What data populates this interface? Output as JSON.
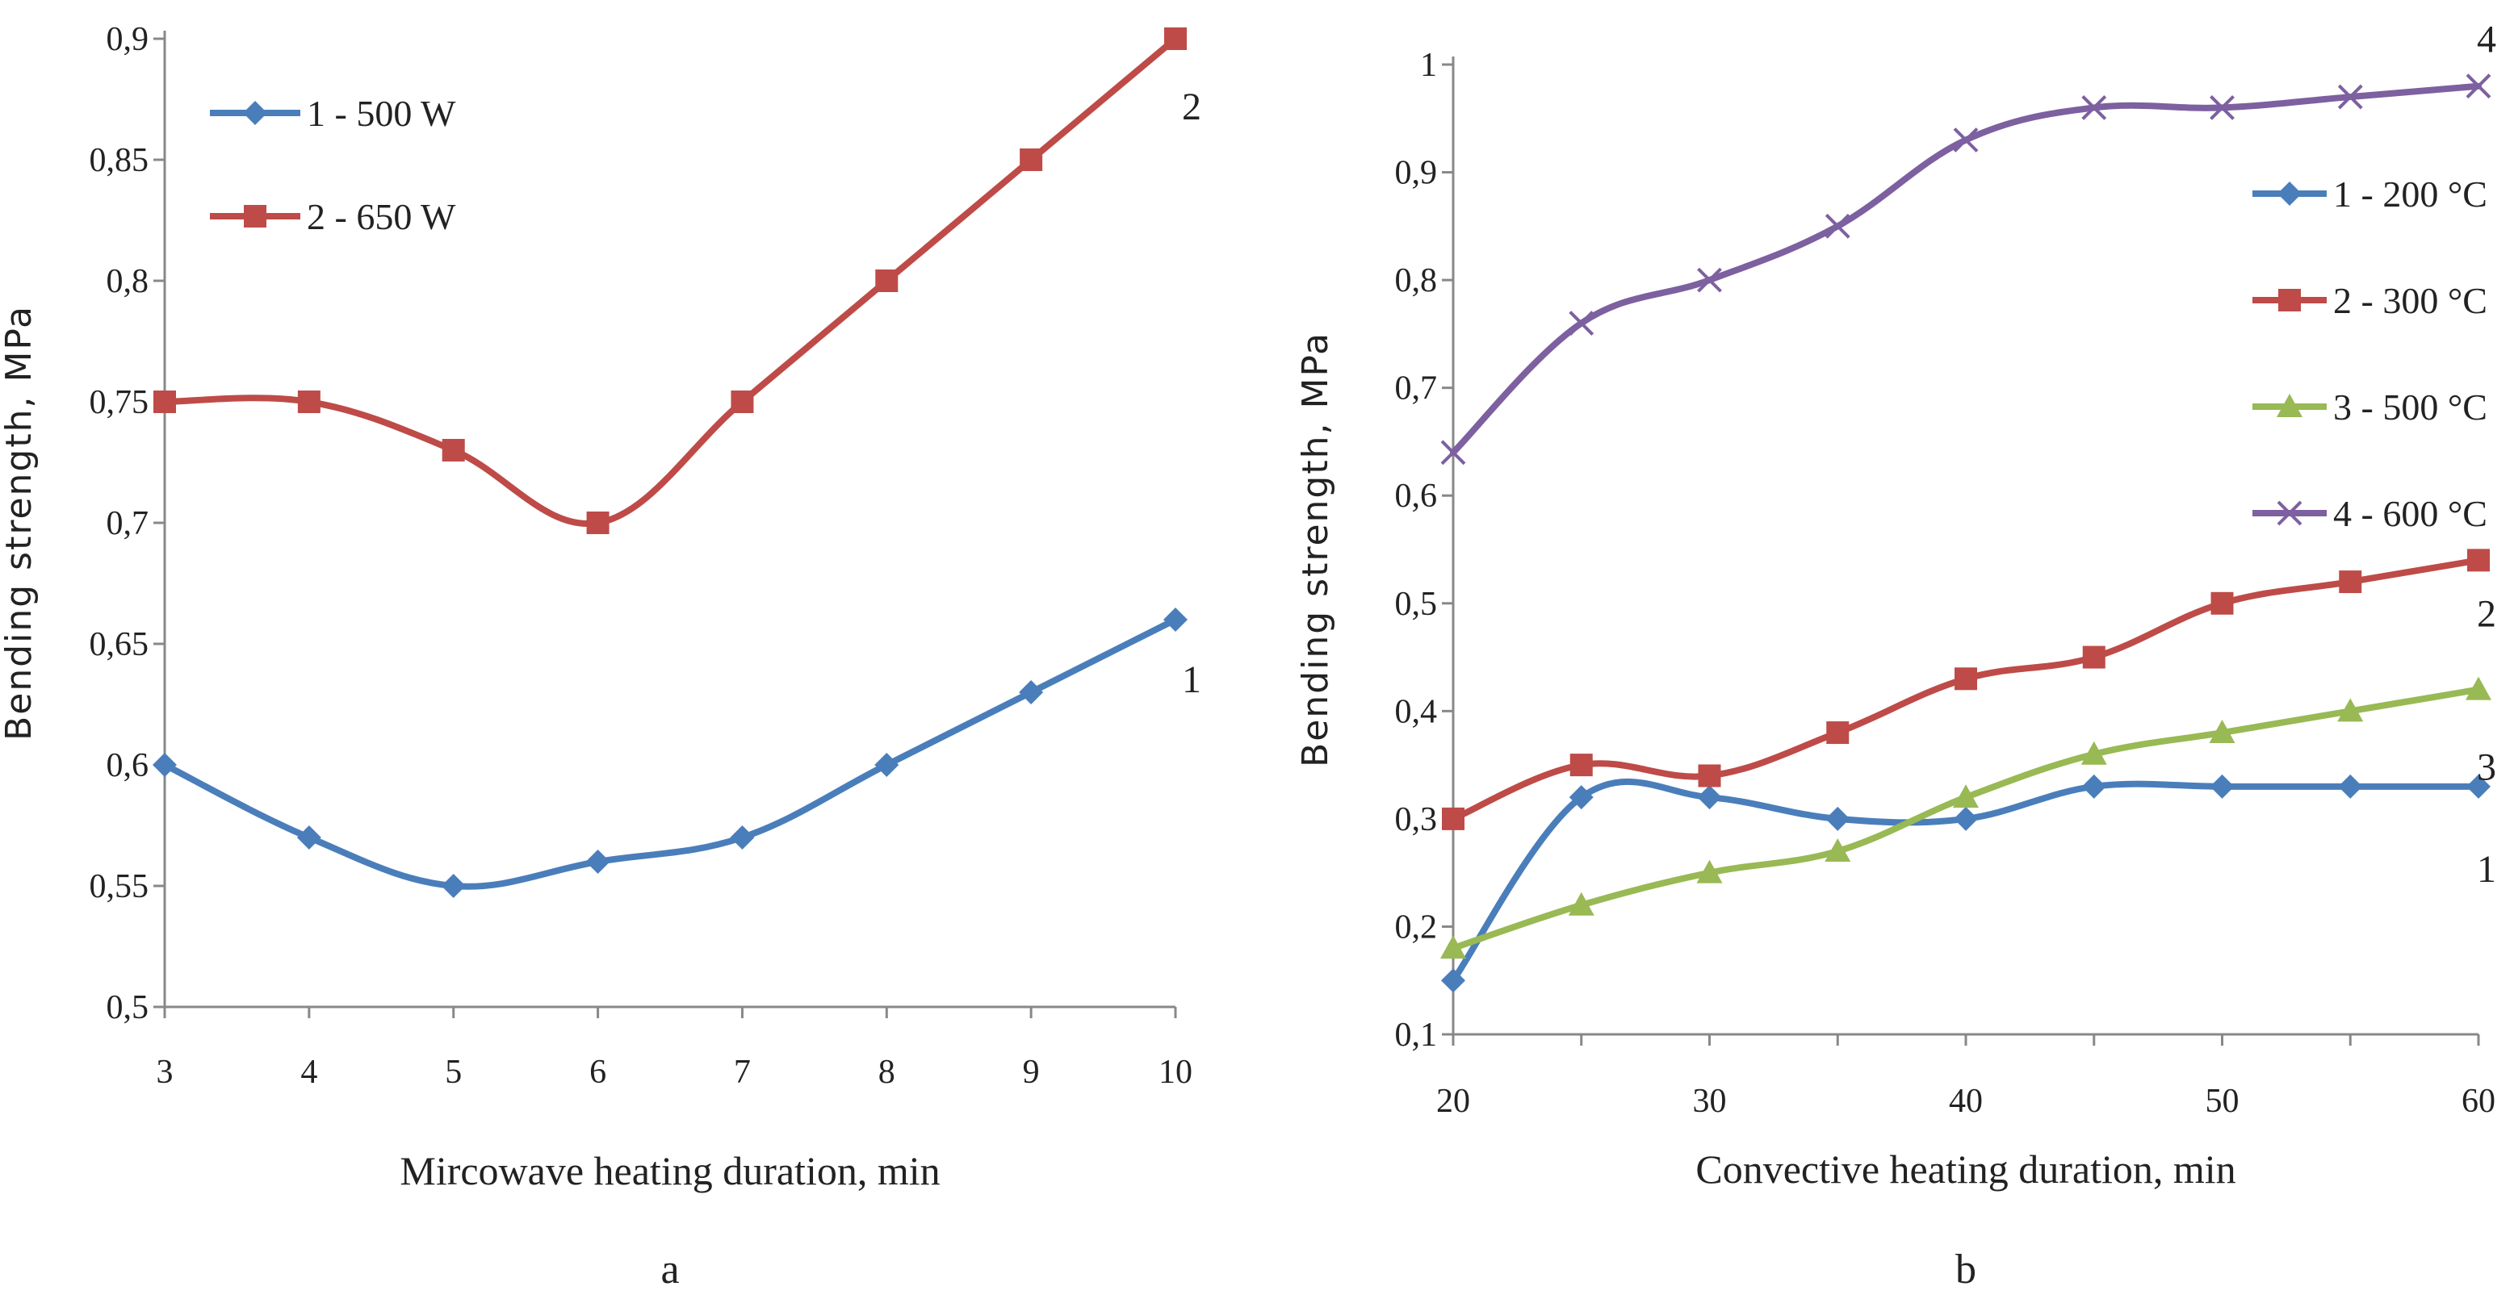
{
  "chart_data": [
    {
      "type": "line",
      "panel_label": "a",
      "xlabel": "Mircowave heating duration, min",
      "ylabel": "Bending strength, MPa",
      "x": [
        3,
        4,
        5,
        6,
        7,
        8,
        9,
        10
      ],
      "x_tick_labels": [
        "3",
        "4",
        "5",
        "6",
        "7",
        "8",
        "9",
        "10"
      ],
      "xlim": [
        3,
        10
      ],
      "ylim": [
        0.5,
        0.9
      ],
      "y_ticks": [
        0.5,
        0.55,
        0.6,
        0.65,
        0.7,
        0.75,
        0.8,
        0.85,
        0.9
      ],
      "y_tick_labels": [
        "0,5",
        "0,55",
        "0,6",
        "0,65",
        "0,7",
        "0,75",
        "0,8",
        "0,85",
        "0,9"
      ],
      "legend_position": "top-left",
      "series": [
        {
          "name": "1 - 500 W",
          "end_label": "1",
          "color": "#4a7ebb",
          "marker": "diamond",
          "values": [
            0.6,
            0.57,
            0.55,
            0.56,
            0.57,
            0.6,
            0.63,
            0.66
          ]
        },
        {
          "name": "2 - 650 W",
          "end_label": "2",
          "color": "#be4b48",
          "marker": "square",
          "values": [
            0.75,
            0.75,
            0.73,
            0.7,
            0.75,
            0.8,
            0.85,
            0.9
          ]
        }
      ]
    },
    {
      "type": "line",
      "panel_label": "b",
      "xlabel": "Convective heating duration, min",
      "ylabel": "Bending strength, MPa",
      "x": [
        20,
        25,
        30,
        35,
        40,
        45,
        50,
        55,
        60
      ],
      "x_ticks": [
        20,
        30,
        40,
        50,
        60
      ],
      "x_tick_labels": [
        "20",
        "30",
        "40",
        "50",
        "60"
      ],
      "xlim": [
        20,
        60
      ],
      "ylim": [
        0.1,
        1.0
      ],
      "y_ticks": [
        0.1,
        0.2,
        0.3,
        0.4,
        0.5,
        0.6,
        0.7,
        0.8,
        0.9,
        1.0
      ],
      "y_tick_labels": [
        "0,1",
        "0,2",
        "0,3",
        "0,4",
        "0,5",
        "0,6",
        "0,7",
        "0,8",
        "0,9",
        "1"
      ],
      "legend_position": "top-right",
      "series": [
        {
          "name": "1 - 200 °C",
          "end_label": "1",
          "color": "#4a7ebb",
          "marker": "diamond",
          "values": [
            0.15,
            0.32,
            0.32,
            0.3,
            0.3,
            0.33,
            0.33,
            0.33,
            0.33
          ]
        },
        {
          "name": "2 - 300 °C",
          "end_label": "2",
          "color": "#be4b48",
          "marker": "square",
          "values": [
            0.3,
            0.35,
            0.34,
            0.38,
            0.43,
            0.45,
            0.5,
            0.52,
            0.54
          ]
        },
        {
          "name": "3 - 500 °C",
          "end_label": "3",
          "color": "#98b954",
          "marker": "triangle",
          "values": [
            0.18,
            0.22,
            0.25,
            0.27,
            0.32,
            0.36,
            0.38,
            0.4,
            0.42
          ]
        },
        {
          "name": "4 - 600 °C",
          "end_label": "4",
          "color": "#7d60a0",
          "marker": "x",
          "values": [
            0.64,
            0.76,
            0.8,
            0.85,
            0.93,
            0.96,
            0.96,
            0.97,
            0.98
          ]
        }
      ]
    }
  ]
}
